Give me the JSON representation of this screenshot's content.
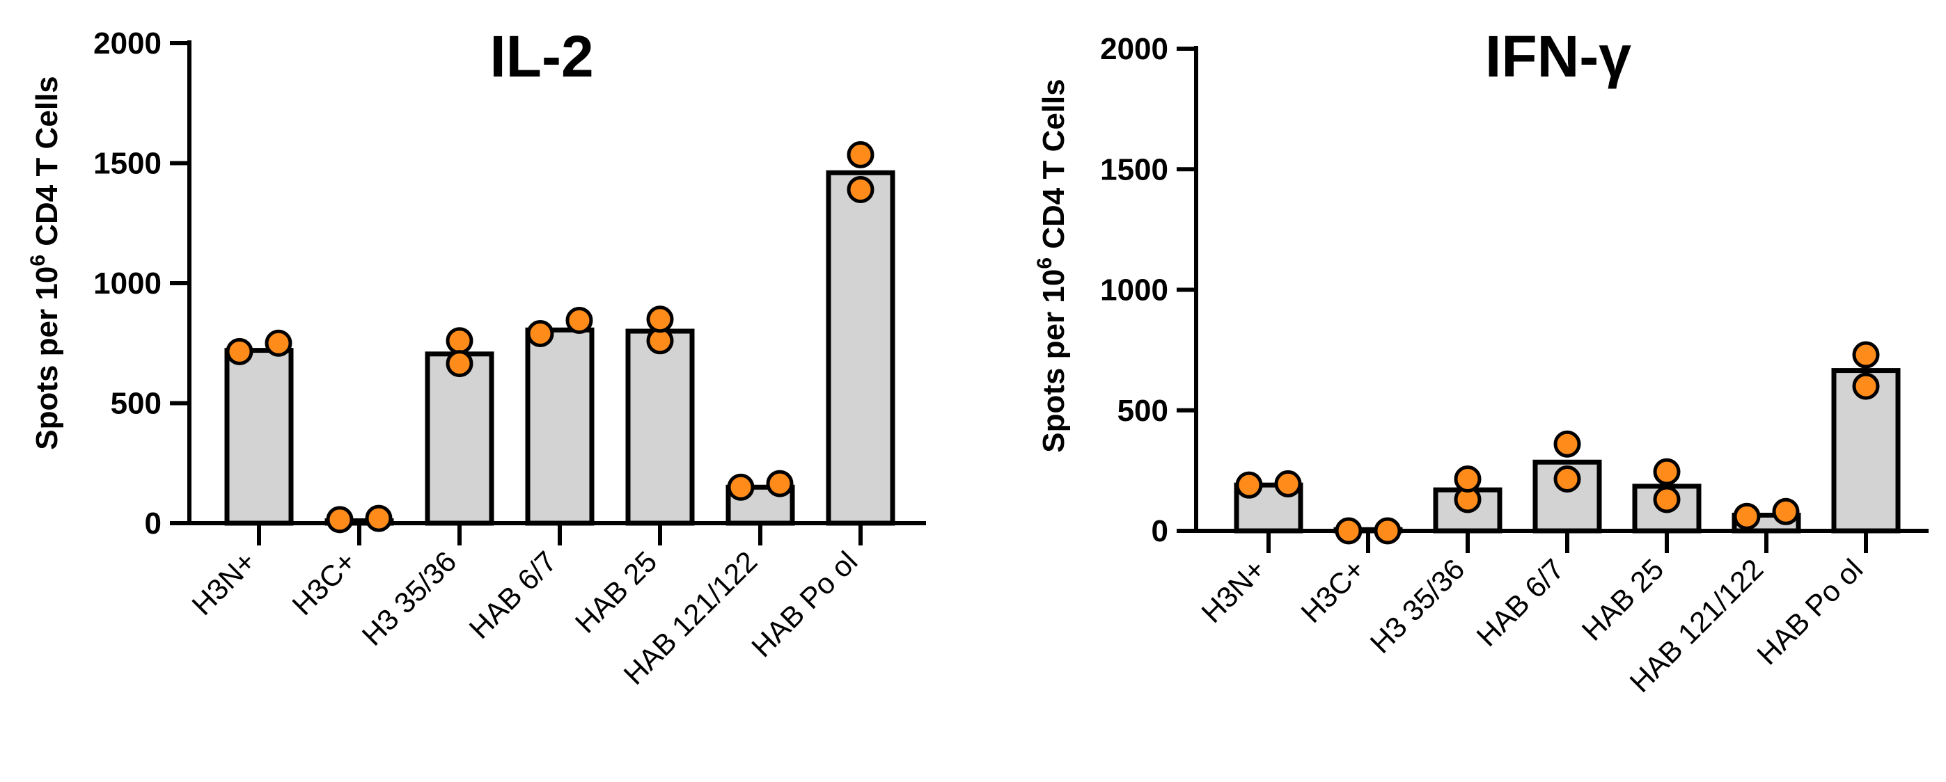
{
  "chart_data": [
    {
      "type": "bar",
      "title": "IL-2",
      "ylabel": {
        "prefix": "Spots per 10",
        "sup": "6",
        "suffix": " CD4 T Cells"
      },
      "xlabel": "",
      "ylim": [
        0,
        2000
      ],
      "yticks": [
        0,
        500,
        1000,
        1500,
        2000
      ],
      "categories": [
        "H3N+",
        "H3C+",
        "H3 35/36",
        "HAB 6/7",
        "HAB 25",
        "HAB 121/122",
        "HAB Po ol"
      ],
      "values": [
        720,
        10,
        705,
        805,
        800,
        150,
        1460
      ],
      "points": [
        [
          715,
          750
        ],
        [
          15,
          20
        ],
        [
          760,
          665
        ],
        [
          790,
          845
        ],
        [
          760,
          850
        ],
        [
          150,
          165
        ],
        [
          1535,
          1390
        ]
      ],
      "colors": {
        "bar": "#d3d3d3",
        "point": "#ff8c1a"
      }
    },
    {
      "type": "bar",
      "title": "IFN-γ",
      "ylabel": {
        "prefix": "Spots per 10",
        "sup": "6",
        "suffix": " CD4 T Cells"
      },
      "xlabel": "",
      "ylim": [
        0,
        2000
      ],
      "yticks": [
        0,
        500,
        1000,
        1500,
        2000
      ],
      "categories": [
        "H3N+",
        "H3C+",
        "H3 35/36",
        "HAB 6/7",
        "HAB 25",
        "HAB 121/122",
        "HAB Po ol"
      ],
      "values": [
        190,
        5,
        170,
        285,
        185,
        65,
        665
      ],
      "points": [
        [
          190,
          195
        ],
        [
          0,
          0
        ],
        [
          130,
          215
        ],
        [
          360,
          215
        ],
        [
          245,
          130
        ],
        [
          60,
          80
        ],
        [
          730,
          600
        ]
      ],
      "colors": {
        "bar": "#d3d3d3",
        "point": "#ff8c1a"
      }
    }
  ]
}
